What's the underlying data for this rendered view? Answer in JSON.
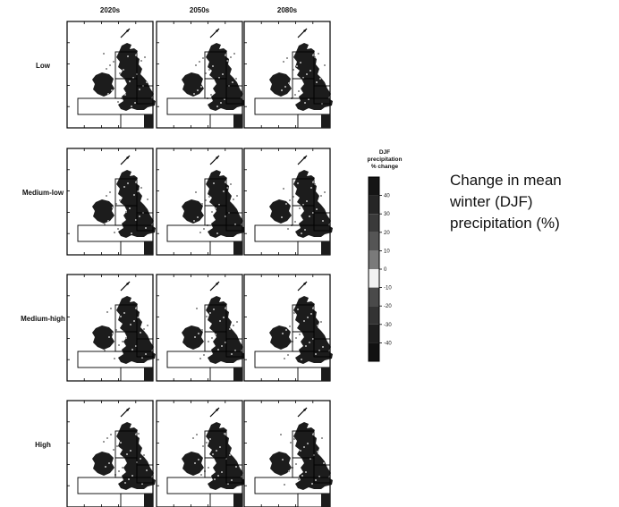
{
  "figure": {
    "column_headers": [
      "2020s",
      "2050s",
      "2080s"
    ],
    "row_labels": [
      "Low",
      "Medium-low",
      "Medium-high",
      "High"
    ],
    "legend": {
      "title_lines": [
        "DJF",
        "precipitation",
        "% change"
      ],
      "tick_labels": [
        "40",
        "30",
        "20",
        "10",
        "0",
        "-10",
        "-20",
        "-30",
        "-40"
      ],
      "colors": [
        "#151515",
        "#262626",
        "#3a3a3a",
        "#555555",
        "#7a7a7a",
        "#f2f2f2",
        "#4a4a4a",
        "#333333",
        "#1e1e1e",
        "#111111"
      ]
    },
    "map_fill": "#1c1c1c",
    "frame_color": "#000000"
  },
  "caption": {
    "lines": [
      "Change in mean",
      "winter (DJF)",
      "precipitation (%)"
    ]
  }
}
